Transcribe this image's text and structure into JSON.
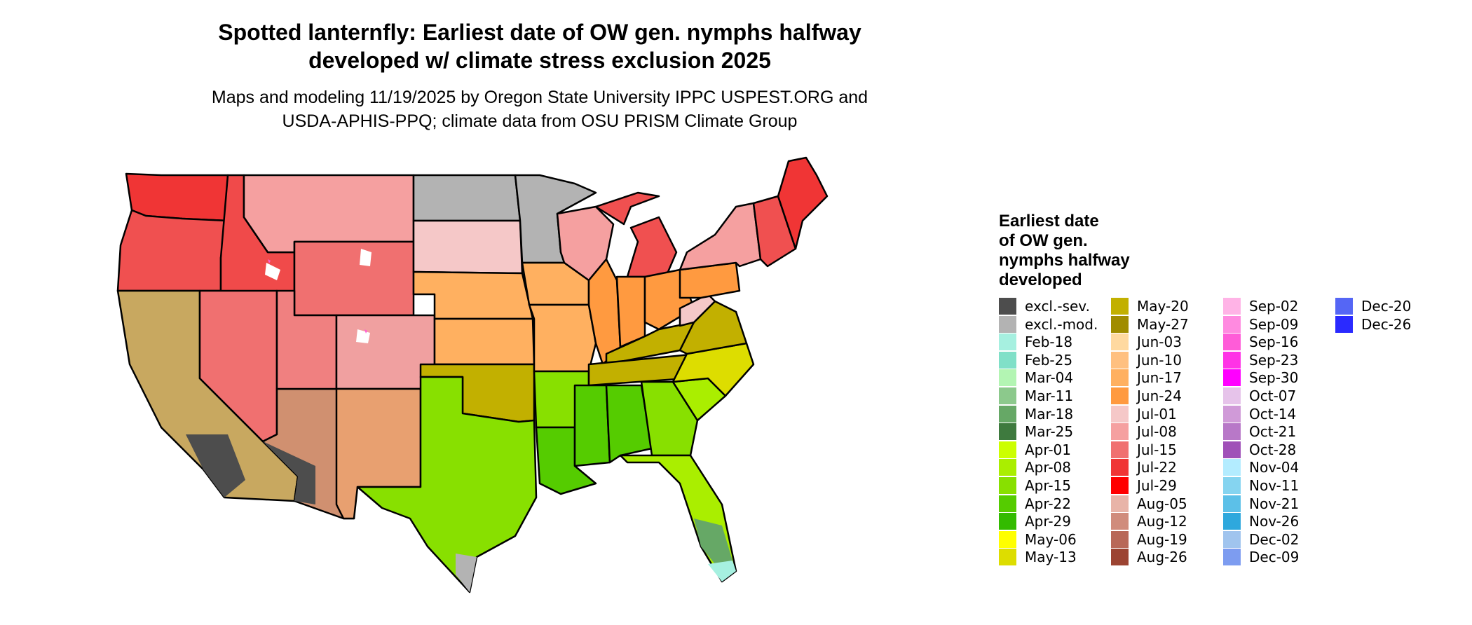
{
  "title": {
    "line1": "Spotted lanternfly: Earliest date of OW gen. nymphs halfway",
    "line2": "developed w/ climate stress exclusion 2025"
  },
  "subtitle": {
    "line1": "Maps and modeling 11/19/2025 by Oregon State University IPPC USPEST.ORG and",
    "line2": "USDA-APHIS-PPQ; climate data from OSU PRISM Climate Group"
  },
  "legend": {
    "title_lines": [
      "Earliest date",
      "of OW gen.",
      "nymphs halfway",
      "developed"
    ],
    "items": [
      {
        "label": "excl.-sev.",
        "color": "#4d4d4d"
      },
      {
        "label": "excl.-mod.",
        "color": "#b3b3b3"
      },
      {
        "label": "Feb-18",
        "color": "#a6f0e0"
      },
      {
        "label": "Feb-25",
        "color": "#80e0c8"
      },
      {
        "label": "Mar-04",
        "color": "#b3f5b3"
      },
      {
        "label": "Mar-11",
        "color": "#8cc98c"
      },
      {
        "label": "Mar-18",
        "color": "#66a866"
      },
      {
        "label": "Mar-25",
        "color": "#3e7a3e"
      },
      {
        "label": "Apr-01",
        "color": "#ccff00"
      },
      {
        "label": "Apr-08",
        "color": "#aaee00"
      },
      {
        "label": "Apr-15",
        "color": "#88e000"
      },
      {
        "label": "Apr-22",
        "color": "#55cc00"
      },
      {
        "label": "Apr-29",
        "color": "#33bb00"
      },
      {
        "label": "May-06",
        "color": "#ffff00"
      },
      {
        "label": "May-13",
        "color": "#dddd00"
      },
      {
        "label": "May-20",
        "color": "#c2b000"
      },
      {
        "label": "May-27",
        "color": "#a08c00"
      },
      {
        "label": "Jun-03",
        "color": "#ffd9a0"
      },
      {
        "label": "Jun-10",
        "color": "#ffc080"
      },
      {
        "label": "Jun-17",
        "color": "#ffb060"
      },
      {
        "label": "Jun-24",
        "color": "#ff9a40"
      },
      {
        "label": "Jul-01",
        "color": "#f5c8c8"
      },
      {
        "label": "Jul-08",
        "color": "#f5a0a0"
      },
      {
        "label": "Jul-15",
        "color": "#f07070"
      },
      {
        "label": "Jul-22",
        "color": "#f03535"
      },
      {
        "label": "Jul-29",
        "color": "#ff0000"
      },
      {
        "label": "Aug-05",
        "color": "#e8b4a8"
      },
      {
        "label": "Aug-12",
        "color": "#d08c7c"
      },
      {
        "label": "Aug-19",
        "color": "#b86858"
      },
      {
        "label": "Aug-26",
        "color": "#9c4432"
      },
      {
        "label": "Sep-02",
        "color": "#ffb3e6"
      },
      {
        "label": "Sep-09",
        "color": "#ff8ae0"
      },
      {
        "label": "Sep-16",
        "color": "#ff5cd8"
      },
      {
        "label": "Sep-23",
        "color": "#ff33e6"
      },
      {
        "label": "Sep-30",
        "color": "#ff00ff"
      },
      {
        "label": "Oct-07",
        "color": "#e6c3ea"
      },
      {
        "label": "Oct-14",
        "color": "#d09ad8"
      },
      {
        "label": "Oct-21",
        "color": "#b878c8"
      },
      {
        "label": "Oct-28",
        "color": "#a050b8"
      },
      {
        "label": "Nov-04",
        "color": "#b3ecff"
      },
      {
        "label": "Nov-11",
        "color": "#85d4f0"
      },
      {
        "label": "Nov-21",
        "color": "#5cc0e8"
      },
      {
        "label": "Nov-26",
        "color": "#2ea8dd"
      },
      {
        "label": "Dec-02",
        "color": "#a0c4ee"
      },
      {
        "label": "Dec-09",
        "color": "#7d9cf0"
      },
      {
        "label": "Dec-20",
        "color": "#5566f5"
      },
      {
        "label": "Dec-26",
        "color": "#2a2aff"
      }
    ]
  },
  "map": {
    "states": [
      {
        "name": "Washington",
        "color": "#f03535"
      },
      {
        "name": "Oregon",
        "color": "#f05050"
      },
      {
        "name": "California",
        "color": "#c8a860"
      },
      {
        "name": "Idaho",
        "color": "#f04a4a"
      },
      {
        "name": "Nevada",
        "color": "#f07070"
      },
      {
        "name": "Arizona",
        "color": "#d09070"
      },
      {
        "name": "Montana",
        "color": "#f5a0a0"
      },
      {
        "name": "Wyoming",
        "color": "#f07070"
      },
      {
        "name": "Utah",
        "color": "#f08080"
      },
      {
        "name": "Colorado",
        "color": "#f0a0a0"
      },
      {
        "name": "New Mexico",
        "color": "#e8a070"
      },
      {
        "name": "North Dakota",
        "color": "#b3b3b3"
      },
      {
        "name": "South Dakota",
        "color": "#f5c8c8"
      },
      {
        "name": "Nebraska",
        "color": "#ffb060"
      },
      {
        "name": "Kansas",
        "color": "#ffb060"
      },
      {
        "name": "Oklahoma",
        "color": "#c2b000"
      },
      {
        "name": "Texas",
        "color": "#88e000"
      },
      {
        "name": "Minnesota",
        "color": "#b3b3b3"
      },
      {
        "name": "Iowa",
        "color": "#ffb060"
      },
      {
        "name": "Missouri",
        "color": "#ffb060"
      },
      {
        "name": "Arkansas",
        "color": "#88e000"
      },
      {
        "name": "Louisiana",
        "color": "#55cc00"
      },
      {
        "name": "Wisconsin",
        "color": "#f5a0a0"
      },
      {
        "name": "Illinois",
        "color": "#ff9a40"
      },
      {
        "name": "Michigan",
        "color": "#f05050"
      },
      {
        "name": "Indiana",
        "color": "#ff9a40"
      },
      {
        "name": "Ohio",
        "color": "#ff9a40"
      },
      {
        "name": "Kentucky",
        "color": "#c2b000"
      },
      {
        "name": "Tennessee",
        "color": "#c2b000"
      },
      {
        "name": "Mississippi",
        "color": "#55cc00"
      },
      {
        "name": "Alabama",
        "color": "#55cc00"
      },
      {
        "name": "Georgia",
        "color": "#88e000"
      },
      {
        "name": "Florida",
        "color": "#aaee00"
      },
      {
        "name": "South Carolina",
        "color": "#aaee00"
      },
      {
        "name": "North Carolina",
        "color": "#dddd00"
      },
      {
        "name": "Virginia",
        "color": "#c2b000"
      },
      {
        "name": "West Virginia",
        "color": "#f5c8c8"
      },
      {
        "name": "Pennsylvania",
        "color": "#ff9a40"
      },
      {
        "name": "New York",
        "color": "#f5a0a0"
      },
      {
        "name": "New England",
        "color": "#f05050"
      },
      {
        "name": "Maine",
        "color": "#f03535"
      }
    ],
    "overlays": [
      {
        "name": "Southern California desert",
        "color": "#4d4d4d"
      },
      {
        "name": "Arizona desert",
        "color": "#4d4d4d"
      },
      {
        "name": "South Texas",
        "color": "#b3b3b3"
      },
      {
        "name": "South Florida",
        "color": "#66a866"
      },
      {
        "name": "Florida tip",
        "color": "#a6f0e0"
      },
      {
        "name": "Rocky Mountain high",
        "color": "#ffffff"
      },
      {
        "name": "Rocky Mountain alpine",
        "color": "#ff5cd8"
      }
    ]
  }
}
